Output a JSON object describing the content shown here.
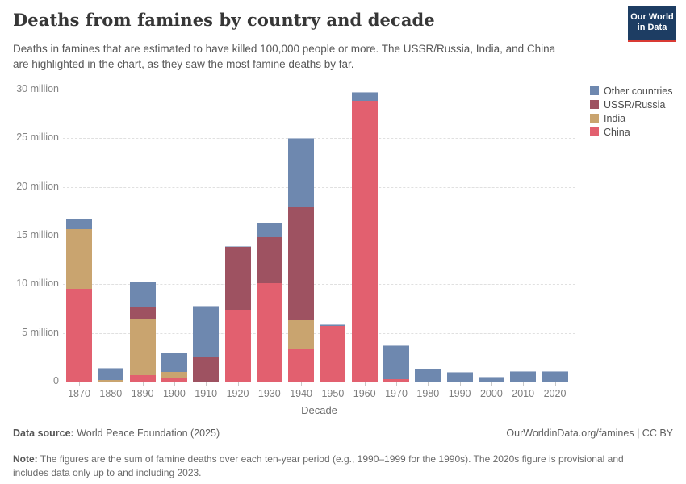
{
  "header": {
    "title": "Deaths from famines by country and decade",
    "subtitle_line1": "Deaths in famines that are estimated to have killed 100,000 people or more. The USSR/Russia, India, and China",
    "subtitle_line2": "are highlighted in the chart, as they saw the most famine deaths by far.",
    "logo": {
      "line1": "Our World",
      "line2": "in Data",
      "bg_color": "#1d3d63",
      "stripe_color": "#d93a34"
    }
  },
  "legend": {
    "items": [
      {
        "label": "Other countries",
        "color": "#6e88af"
      },
      {
        "label": "USSR/Russia",
        "color": "#9e5261"
      },
      {
        "label": "India",
        "color": "#c9a46f"
      },
      {
        "label": "China",
        "color": "#e2606f"
      }
    ]
  },
  "chart_data": {
    "type": "bar",
    "stacked": true,
    "title": "Deaths from famines by country and decade",
    "xlabel": "Decade",
    "ylabel": "",
    "unit": "million deaths",
    "ylim": [
      0,
      30
    ],
    "grid": "horizontal-dashed",
    "legend_position": "right-top",
    "categories": [
      "1870",
      "1880",
      "1890",
      "1900",
      "1910",
      "1920",
      "1930",
      "1940",
      "1950",
      "1960",
      "1970",
      "1980",
      "1990",
      "2000",
      "2010",
      "2020"
    ],
    "series": [
      {
        "name": "China",
        "color": "#e2606f",
        "values": [
          9.5,
          0,
          0.7,
          0.4,
          0,
          7.4,
          10.1,
          3.3,
          5.7,
          28.8,
          0.25,
          0,
          0,
          0,
          0,
          0
        ]
      },
      {
        "name": "India",
        "color": "#c9a46f",
        "values": [
          6.2,
          0.2,
          5.8,
          0.6,
          0,
          0,
          0,
          3.0,
          0,
          0,
          0,
          0,
          0,
          0,
          0,
          0
        ]
      },
      {
        "name": "USSR/Russia",
        "color": "#9e5261",
        "values": [
          0,
          0,
          1.2,
          0,
          2.6,
          6.4,
          4.7,
          11.7,
          0,
          0,
          0,
          0,
          0,
          0,
          0,
          0
        ]
      },
      {
        "name": "Other countries",
        "color": "#6e88af",
        "values": [
          1.0,
          1.2,
          2.6,
          2.0,
          5.2,
          0.1,
          1.5,
          7.0,
          0.15,
          0.95,
          3.5,
          1.35,
          1.0,
          0.5,
          1.1,
          1.05
        ]
      }
    ],
    "y_ticks": [
      {
        "value": 0,
        "label": "0"
      },
      {
        "value": 5,
        "label": "5 million"
      },
      {
        "value": 10,
        "label": "10 million"
      },
      {
        "value": 15,
        "label": "15 million"
      },
      {
        "value": 20,
        "label": "20 million"
      },
      {
        "value": 25,
        "label": "25 million"
      },
      {
        "value": 30,
        "label": "30 million"
      }
    ]
  },
  "footer": {
    "source_label": "Data source:",
    "source_text": " World Peace Foundation (2025)",
    "attribution_url": "OurWorldinData.org/famines",
    "attribution_separator": " | ",
    "attribution_license": "CC BY",
    "note_label": "Note:",
    "note_line1": " The figures are the sum of famine deaths over each ten-year period (e.g., 1990–1999 for the 1990s). The 2020s figure is provisional and",
    "note_line2": "includes data only up to and including 2023."
  }
}
